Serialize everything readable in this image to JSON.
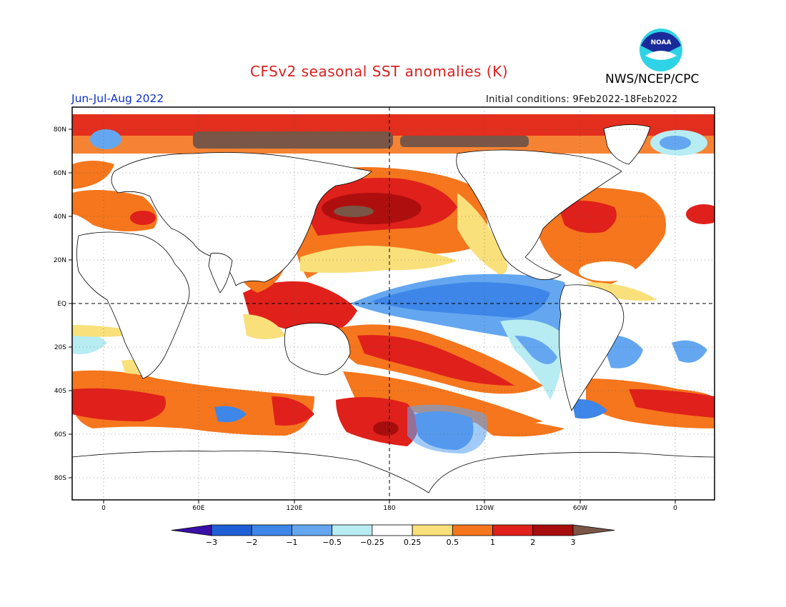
{
  "header": {
    "title": "CFSv2 seasonal SST anomalies (K)",
    "agency": "NWS/NCEP/CPC",
    "period": "Jun-Jul-Aug 2022",
    "initial_conditions": "Initial conditions: 9Feb2022-18Feb2022",
    "logo_text": "NOAA"
  },
  "map": {
    "lat_labels": [
      "80N",
      "60N",
      "40N",
      "20N",
      "EQ",
      "20S",
      "40S",
      "60S",
      "80S"
    ],
    "lon_labels": [
      "0",
      "60E",
      "120E",
      "180",
      "120W",
      "60W",
      "0"
    ]
  },
  "colorbar": {
    "tick_labels": [
      "-3",
      "-2",
      "-1",
      "-0.5",
      "-0.25",
      "0.25",
      "0.5",
      "1",
      "2",
      "3"
    ],
    "colors": [
      "#3a0fa8",
      "#1f5fd6",
      "#3e86e8",
      "#64a7f0",
      "#b7ecf2",
      "#ffffff",
      "#f9e07a",
      "#f5761d",
      "#e0201b",
      "#a80d0d",
      "#7a5646"
    ]
  }
}
